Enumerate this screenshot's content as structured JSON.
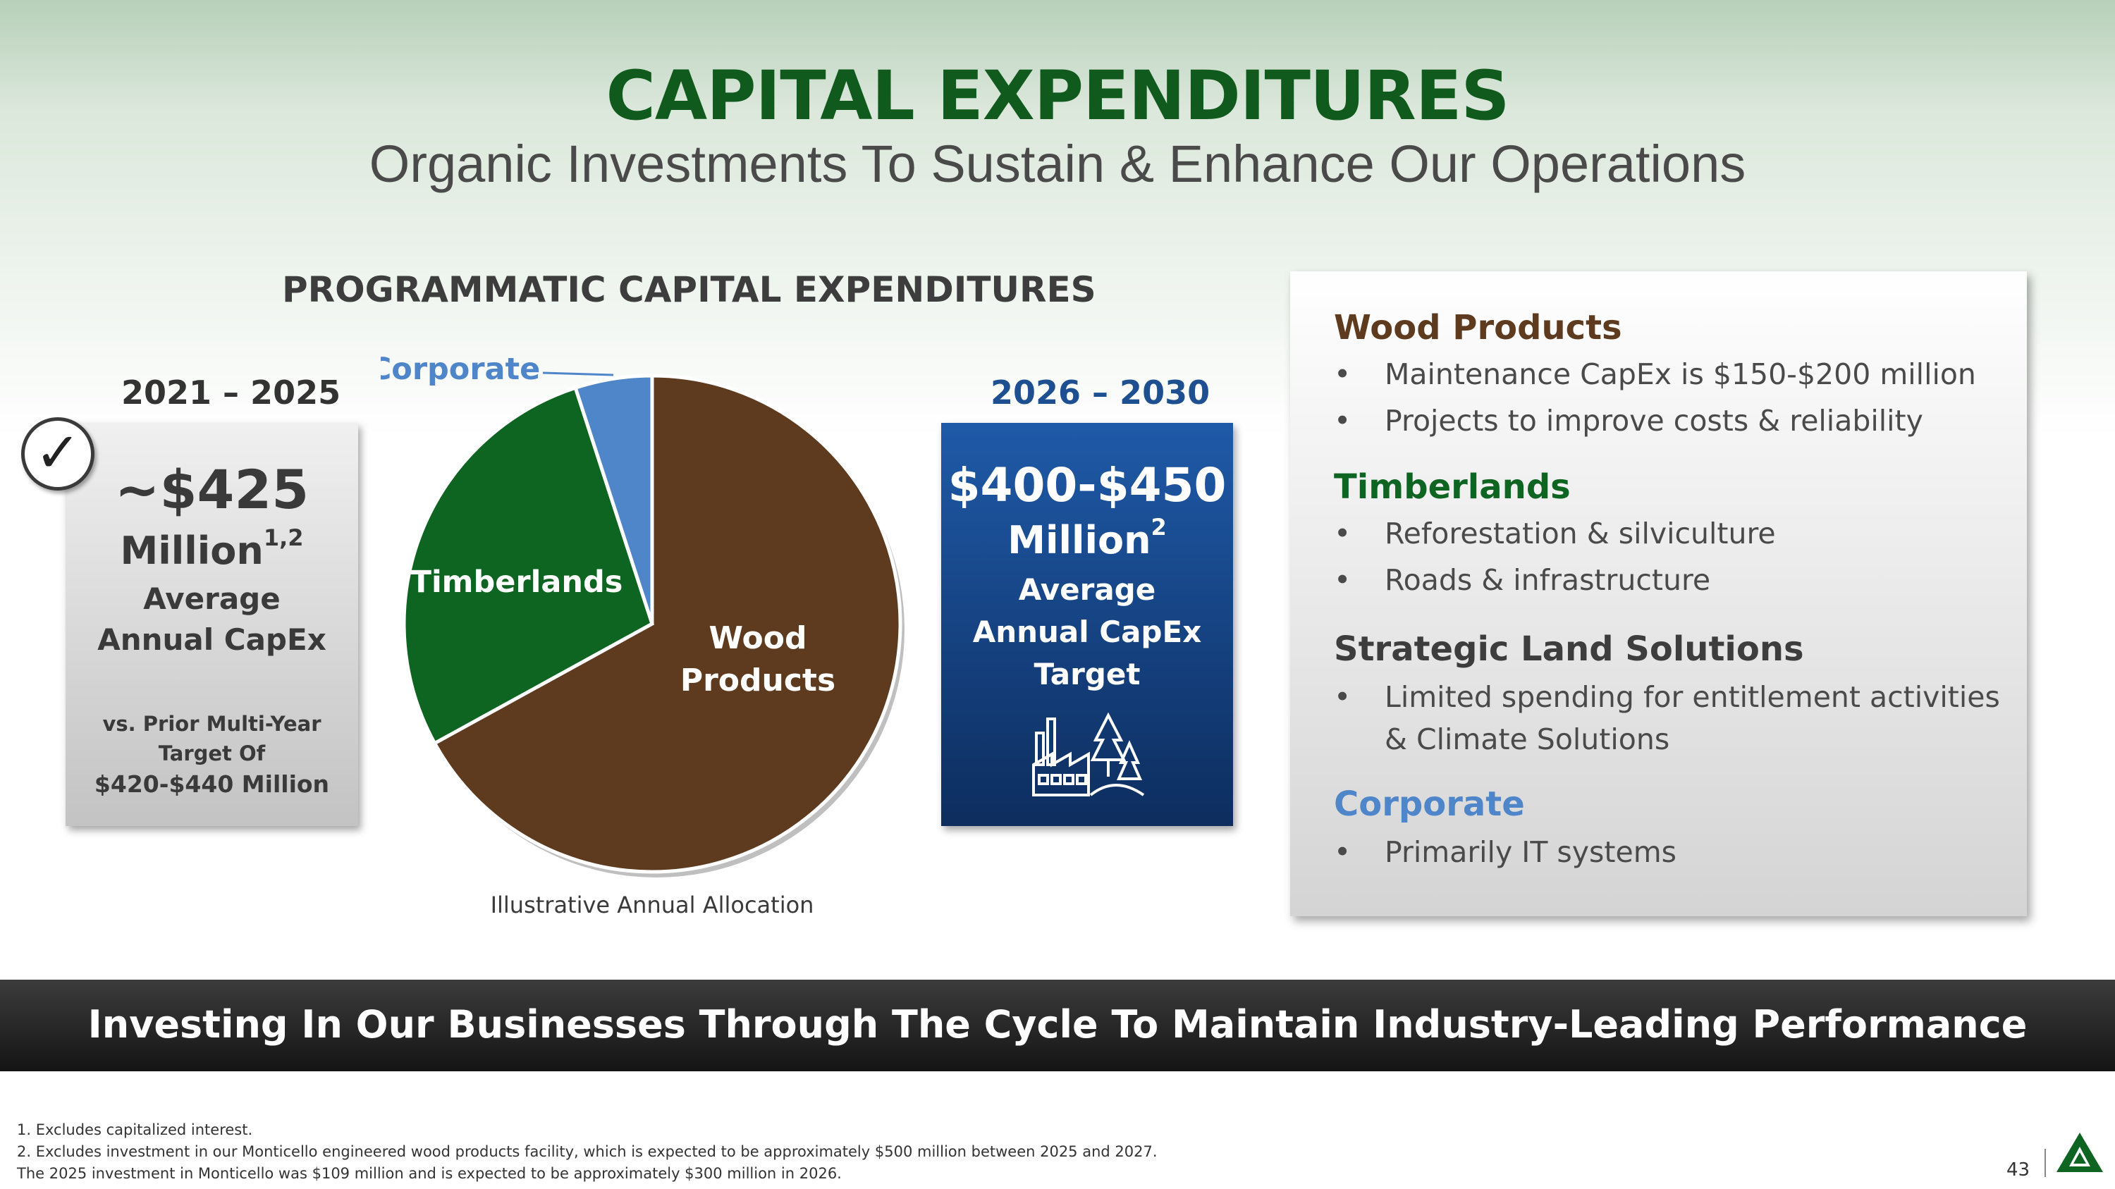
{
  "title": "CAPITAL EXPENDITURES",
  "subtitle": "Organic Investments To Sustain & Enhance Our Operations",
  "programmatic_heading": "PROGRAMMATIC CAPITAL EXPENDITURES",
  "left_box": {
    "period": "2021 – 2025",
    "amount": "~$425",
    "unit": "Million",
    "unit_sup": "1,2",
    "line3": "Average",
    "line4": "Annual CapEx",
    "small1": "vs. Prior Multi-Year",
    "small2": "Target Of",
    "small3": "$420-$440 Million",
    "check_glyph": "✓"
  },
  "right_box": {
    "period": "2026 – 2030",
    "amount": "$400-$450",
    "unit": "Million",
    "unit_sup": "2",
    "line3": "Average",
    "line4": "Annual CapEx",
    "line5": "Target",
    "icon": "factory-trees-icon"
  },
  "chart_data": {
    "type": "pie",
    "title": "",
    "caption": "Illustrative Annual Allocation",
    "slices": [
      {
        "label": "Wood Products",
        "value": 67,
        "color": "#5e3b1f"
      },
      {
        "label": "Timberlands",
        "value": 28,
        "color": "#0e6421"
      },
      {
        "label": "Corporate",
        "value": 5,
        "color": "#4f86c9"
      }
    ]
  },
  "pie_labels": {
    "wood_line1": "Wood",
    "wood_line2": "Products",
    "timber": "Timberlands",
    "corporate": "Corporate"
  },
  "panel": {
    "sections": [
      {
        "heading": "Wood Products",
        "color": "#5e3b1f",
        "bullets": [
          "Maintenance CapEx is $150-$200 million",
          "Projects to improve costs & reliability"
        ]
      },
      {
        "heading": "Timberlands",
        "color": "#0e6421",
        "bullets": [
          "Reforestation & silviculture",
          "Roads & infrastructure"
        ]
      },
      {
        "heading": "Strategic Land Solutions",
        "color": "#3d3d3d",
        "bullets": [
          "Limited spending for entitlement activities",
          "& Climate Solutions"
        ]
      },
      {
        "heading": "Corporate",
        "color": "#4f86c9",
        "bullets": [
          "Primarily IT systems"
        ]
      }
    ],
    "bullet_glyph": "•"
  },
  "banner": "Investing In Our Businesses Through The Cycle To Maintain Industry-Leading Performance",
  "footnotes": [
    "1. Excludes capitalized interest.",
    "2. Excludes investment in our Monticello engineered wood products facility, which is expected to be approximately $500 million between 2025 and 2027.",
    "The 2025 investment in Monticello was $109 million and is expected to be approximately $300 million in 2026."
  ],
  "page_number": "43",
  "colors": {
    "title_green": "#0f5a1c",
    "wood_brown": "#5e3b1f",
    "timber_green": "#0e6421",
    "corporate_blue": "#4f86c9",
    "navy": "#1d4f91"
  }
}
